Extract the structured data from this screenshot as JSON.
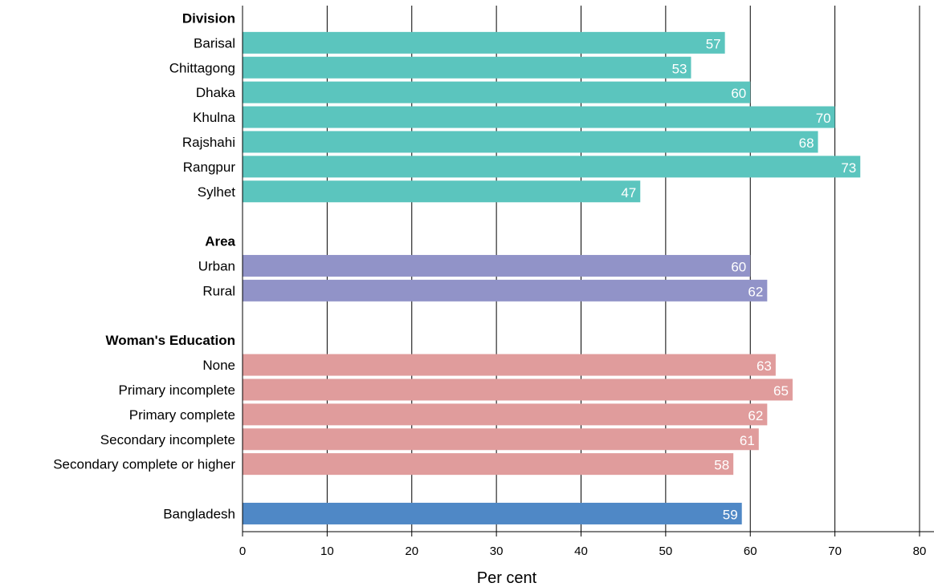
{
  "chart_data": {
    "type": "bar",
    "orientation": "horizontal",
    "xlabel": "Per cent",
    "xlim": [
      0,
      80
    ],
    "xticks": [
      0,
      10,
      20,
      30,
      40,
      50,
      60,
      70,
      80
    ],
    "grid": "vertical",
    "groups": [
      {
        "header": "Division",
        "color": "#5bc5be",
        "categories": [
          "Barisal",
          "Chittagong",
          "Dhaka",
          "Khulna",
          "Rajshahi",
          "Rangpur",
          "Sylhet"
        ],
        "values": [
          57,
          53,
          60,
          70,
          68,
          73,
          47
        ]
      },
      {
        "header": "Area",
        "color": "#9193c8",
        "categories": [
          "Urban",
          "Rural"
        ],
        "values": [
          60,
          62
        ]
      },
      {
        "header": "Woman's Education",
        "color": "#e09c9c",
        "categories": [
          "None",
          "Primary incomplete",
          "Primary complete",
          "Secondary incomplete",
          "Secondary complete or higher"
        ],
        "values": [
          63,
          65,
          62,
          61,
          58
        ]
      },
      {
        "header": "",
        "color": "#4f88c6",
        "categories": [
          "Bangladesh"
        ],
        "values": [
          59
        ]
      }
    ]
  }
}
